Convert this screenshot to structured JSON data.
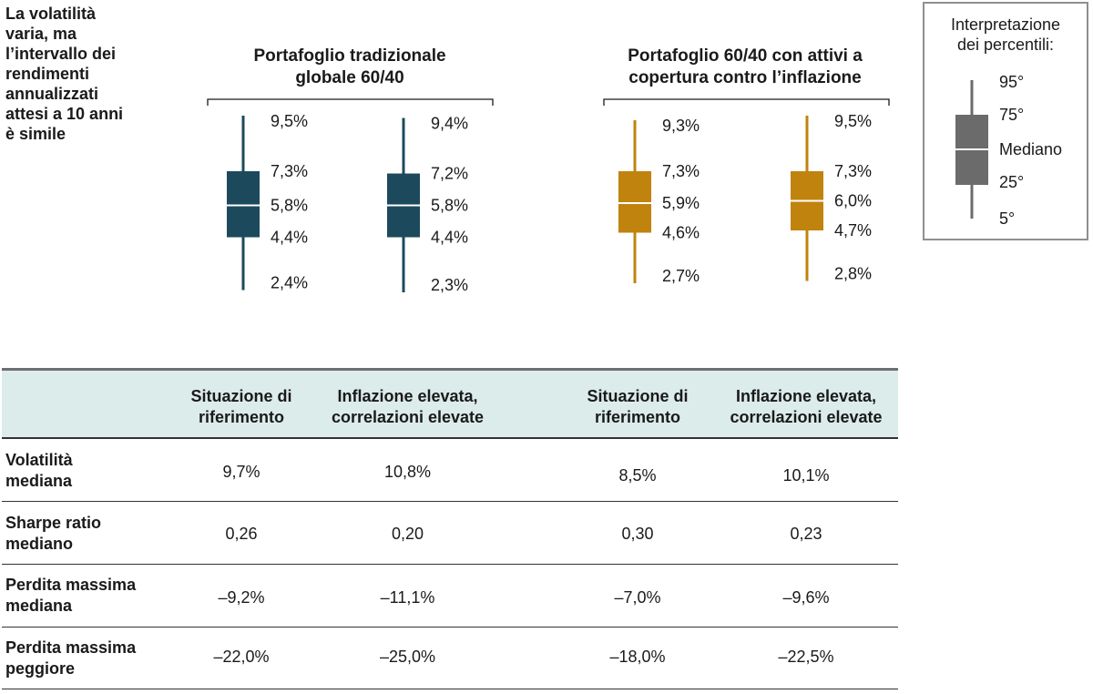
{
  "side_note": {
    "lines": [
      "La volatilità",
      "varia, ma",
      "l’intervallo dei",
      "rendimenti",
      "annualizzati",
      "attesi a 10 anni",
      "è simile"
    ]
  },
  "legend": {
    "title_lines": [
      "Interpretazione",
      "dei percentili:"
    ],
    "labels": [
      "95°",
      "75°",
      "Mediano",
      "25°",
      "5°"
    ],
    "box_color": "#6b6b6b"
  },
  "colors": {
    "navy": "#1c4a5c",
    "gold": "#c0830e",
    "table_header_bg": "#dcecea"
  },
  "chart_data": {
    "type": "box",
    "groups": [
      {
        "title_lines": [
          "Portafoglio tradizionale",
          "globale 60/40"
        ],
        "color": "#1c4a5c",
        "boxes": [
          {
            "p95": 9.5,
            "p75": 7.3,
            "p50": 5.8,
            "p25": 4.4,
            "p5": 2.4,
            "labels": [
              "9,5%",
              "7,3%",
              "5,8%",
              "4,4%",
              "2,4%"
            ]
          },
          {
            "p95": 9.4,
            "p75": 7.2,
            "p50": 5.8,
            "p25": 4.4,
            "p5": 2.3,
            "labels": [
              "9,4%",
              "7,2%",
              "5,8%",
              "4,4%",
              "2,3%"
            ]
          }
        ]
      },
      {
        "title_lines": [
          "Portafoglio 60/40 con attivi a",
          "copertura contro l’inflazione"
        ],
        "color": "#c0830e",
        "boxes": [
          {
            "p95": 9.3,
            "p75": 7.3,
            "p50": 5.9,
            "p25": 4.6,
            "p5": 2.7,
            "labels": [
              "9,3%",
              "7,3%",
              "5,9%",
              "4,6%",
              "2,7%"
            ]
          },
          {
            "p95": 9.5,
            "p75": 7.3,
            "p50": 6.0,
            "p25": 4.7,
            "p5": 2.8,
            "labels": [
              "9,5%",
              "7,3%",
              "6,0%",
              "4,7%",
              "2,8%"
            ]
          }
        ]
      }
    ]
  },
  "table": {
    "columns": [
      [
        "Situazione di",
        "riferimento"
      ],
      [
        "Inflazione elevata,",
        "correlazioni elevate"
      ],
      [
        "Situazione di",
        "riferimento"
      ],
      [
        "Inflazione elevata,",
        "correlazioni elevate"
      ]
    ],
    "rows": [
      {
        "label": [
          "Volatilità",
          "mediana"
        ],
        "values": [
          "9,7%",
          "10,8%",
          "8,5%",
          "10,1%"
        ]
      },
      {
        "label": [
          "Sharpe ratio",
          "mediano"
        ],
        "values": [
          "0,26",
          "0,20",
          "0,30",
          "0,23"
        ]
      },
      {
        "label": [
          "Perdita massima",
          "mediana"
        ],
        "values": [
          "–9,2%",
          "–11,1%",
          "–7,0%",
          "–9,6%"
        ]
      },
      {
        "label": [
          "Perdita massima",
          "peggiore"
        ],
        "values": [
          "–22,0%",
          "–25,0%",
          "–18,0%",
          "–22,5%"
        ]
      }
    ]
  }
}
